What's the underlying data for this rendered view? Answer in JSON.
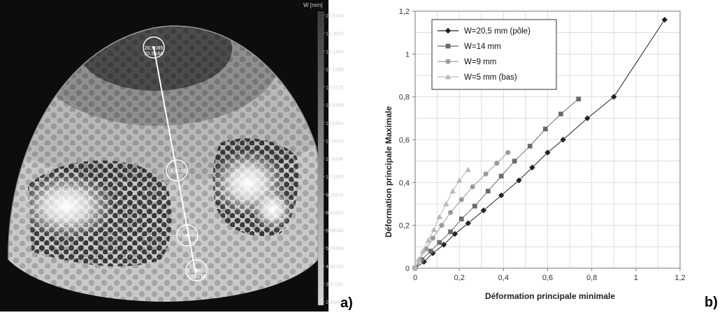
{
  "panel_a": {
    "colorbar_title": "W [mm]",
    "colorbar_ticks": [
      "20.5184",
      "19.3819",
      "18.2454",
      "17.1089",
      "15.9724",
      "14.8359",
      "13.6994",
      "12.5629",
      "11.4264",
      "10.2899",
      "9.15343",
      "8.01693",
      "6.88044",
      "5.74394",
      "4.60744",
      "3.47095",
      "2.33445"
    ],
    "point_labels": [
      {
        "top": "20.5085",
        "bottom": "20.5186"
      },
      {
        "top": "14.4168",
        "bottom": ""
      },
      {
        "top": "9.07957",
        "bottom": ""
      },
      {
        "top": "5.24939",
        "bottom": "4.08218"
      }
    ],
    "panel_letter": "a)"
  },
  "panel_b": {
    "panel_letter": "b)"
  },
  "chart_data": {
    "type": "scatter",
    "xlabel": "Déformation principale minimale",
    "ylabel": "Déformation principale Maximale",
    "xlim": [
      0,
      1.2
    ],
    "ylim": [
      0,
      1.2
    ],
    "x_ticks": [
      "0",
      "0,2",
      "0,4",
      "0,6",
      "0,8",
      "1",
      "1,2"
    ],
    "y_ticks": [
      "0",
      "0,2",
      "0,4",
      "0,6",
      "0,8",
      "1",
      "1,2"
    ],
    "grid": true,
    "legend_position": "top-left",
    "series": [
      {
        "name": "W=20,5 mm (pôle)",
        "marker": "diamond",
        "color": "#222222",
        "x": [
          0,
          0.04,
          0.08,
          0.13,
          0.18,
          0.24,
          0.31,
          0.39,
          0.47,
          0.53,
          0.6,
          0.67,
          0.78,
          0.9,
          1.13
        ],
        "y": [
          0,
          0.03,
          0.07,
          0.11,
          0.16,
          0.21,
          0.27,
          0.34,
          0.41,
          0.47,
          0.54,
          0.6,
          0.7,
          0.8,
          1.16
        ]
      },
      {
        "name": "W=14 mm",
        "marker": "square",
        "color": "#6a6a6a",
        "x": [
          0,
          0.03,
          0.07,
          0.11,
          0.16,
          0.21,
          0.27,
          0.33,
          0.39,
          0.45,
          0.52,
          0.59,
          0.66,
          0.74
        ],
        "y": [
          0,
          0.04,
          0.08,
          0.12,
          0.17,
          0.23,
          0.29,
          0.36,
          0.43,
          0.5,
          0.57,
          0.65,
          0.72,
          0.79
        ]
      },
      {
        "name": "W=9 mm",
        "marker": "circle",
        "color": "#9a9a9a",
        "x": [
          0,
          0.02,
          0.05,
          0.08,
          0.12,
          0.16,
          0.21,
          0.26,
          0.32,
          0.37,
          0.42
        ],
        "y": [
          0,
          0.04,
          0.09,
          0.14,
          0.2,
          0.26,
          0.32,
          0.38,
          0.44,
          0.49,
          0.54
        ]
      },
      {
        "name": "W=5 mm (bas)",
        "marker": "triangle",
        "color": "#b8b8b8",
        "x": [
          0,
          0.015,
          0.035,
          0.06,
          0.085,
          0.11,
          0.14,
          0.17,
          0.2,
          0.24
        ],
        "y": [
          0,
          0.04,
          0.08,
          0.13,
          0.18,
          0.24,
          0.3,
          0.36,
          0.41,
          0.46
        ]
      }
    ]
  }
}
